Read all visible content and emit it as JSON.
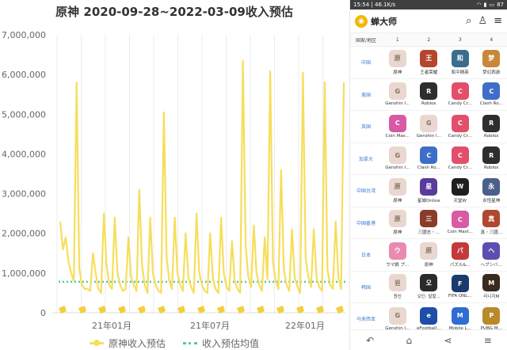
{
  "chart_data": {
    "type": "line",
    "title": "原神 2020-09-28~2022-03-09收入预估",
    "ylim": [
      0,
      7000000
    ],
    "yticks": [
      "0",
      "1,000,000",
      "2,000,000",
      "3,000,000",
      "4,000,000",
      "5,000,000",
      "6,000,000",
      "7,000,000"
    ],
    "xtick_labels": [
      "21年01月",
      "21年07月",
      "22年01月"
    ],
    "grid": "vertical",
    "legend_position": "bottom",
    "series": [
      {
        "name": "原神收入预估",
        "color": "#f7de5b",
        "values": [
          2300000,
          1600000,
          1900000,
          1300000,
          1000000,
          800000,
          5800000,
          1100000,
          700000,
          600000,
          600000,
          550000,
          1500000,
          1000000,
          600000,
          500000,
          2500000,
          1200000,
          700000,
          600000,
          2400000,
          1000000,
          700000,
          550000,
          600000,
          1900000,
          900000,
          700000,
          550000,
          3100000,
          1200000,
          700000,
          500000,
          2400000,
          1000000,
          700000,
          550000,
          500000,
          5050000,
          1400000,
          800000,
          600000,
          2400000,
          1000000,
          700000,
          550000,
          2000000,
          900000,
          650000,
          500000,
          2500000,
          1000000,
          700000,
          550000,
          500000,
          2000000,
          850000,
          600000,
          500000,
          2400000,
          1000000,
          650000,
          550000,
          1800000,
          800000,
          600000,
          500000,
          6350000,
          1700000,
          900000,
          650000,
          2200000,
          1000000,
          700000,
          550000,
          1900000,
          850000,
          6080000,
          1300000,
          800000,
          600000,
          3600000,
          1100000,
          700000,
          550000,
          2100000,
          900000,
          650000,
          500000,
          6050000,
          1400000,
          900000,
          650000,
          2100000,
          900000,
          650000,
          550000,
          5800000,
          1100000,
          700000,
          600000,
          2300000,
          900000,
          600000,
          5800000
        ],
        "stride_days": 5
      },
      {
        "name": "收入预估均值",
        "color": "#57c6a8",
        "constant": 780000
      }
    ]
  },
  "phone": {
    "status_time": "15:54",
    "status_net": "46.1K/s",
    "battery": "87",
    "app_name": "蝉大师",
    "header_icons": [
      "search-icon",
      "user-icon",
      "menu-icon"
    ],
    "column_header": [
      "国家/地区",
      "1",
      "2",
      "3",
      "4"
    ],
    "rows": [
      {
        "region": "中国",
        "apps": [
          {
            "name": "原神",
            "color": "#e8d8d0",
            "glyph": "原"
          },
          {
            "name": "王者荣耀",
            "color": "#b5462e",
            "glyph": "王"
          },
          {
            "name": "和平精英",
            "color": "#3b6c8f",
            "glyph": "和"
          },
          {
            "name": "梦幻西游",
            "color": "#c9873a",
            "glyph": "梦"
          }
        ]
      },
      {
        "region": "美国",
        "apps": [
          {
            "name": "Genshin I...",
            "color": "#e8d8d0",
            "glyph": "G"
          },
          {
            "name": "Roblox",
            "color": "#2e2e2e",
            "glyph": "R"
          },
          {
            "name": "Candy Cr...",
            "color": "#e34f6b",
            "glyph": "C"
          },
          {
            "name": "Clash Ro...",
            "color": "#3e6ec9",
            "glyph": "C"
          }
        ]
      },
      {
        "region": "英国",
        "apps": [
          {
            "name": "Coin Mas...",
            "color": "#d85aa5",
            "glyph": "C"
          },
          {
            "name": "Genshin I...",
            "color": "#e8d8d0",
            "glyph": "G"
          },
          {
            "name": "Candy Cr...",
            "color": "#e34f6b",
            "glyph": "C"
          },
          {
            "name": "Roblox",
            "color": "#2e2e2e",
            "glyph": "R"
          }
        ]
      },
      {
        "region": "加拿大",
        "apps": [
          {
            "name": "Genshin I...",
            "color": "#e8d8d0",
            "glyph": "G"
          },
          {
            "name": "Clash Ro...",
            "color": "#3e6ec9",
            "glyph": "C"
          },
          {
            "name": "Candy Cr...",
            "color": "#e34f6b",
            "glyph": "C"
          },
          {
            "name": "Roblox",
            "color": "#2e2e2e",
            "glyph": "R"
          }
        ]
      },
      {
        "region": "中国台湾",
        "apps": [
          {
            "name": "原神",
            "color": "#e8d8d0",
            "glyph": "原"
          },
          {
            "name": "星城Online",
            "color": "#5b3a9e",
            "glyph": "星"
          },
          {
            "name": "天堂W",
            "color": "#1f1f1f",
            "glyph": "W"
          },
          {
            "name": "永恆星神",
            "color": "#4a5f8a",
            "glyph": "永"
          }
        ]
      },
      {
        "region": "中国香港",
        "apps": [
          {
            "name": "原神",
            "color": "#e8d8d0",
            "glyph": "原"
          },
          {
            "name": "三國志・...",
            "color": "#8a3b2a",
            "glyph": "三"
          },
          {
            "name": "Coin Mast...",
            "color": "#d85aa5",
            "glyph": "C"
          },
          {
            "name": "真・三國...",
            "color": "#b0472e",
            "glyph": "真"
          }
        ]
      },
      {
        "region": "日本",
        "apps": [
          {
            "name": "ウマ娘 プ...",
            "color": "#e98bb0",
            "glyph": "ウ"
          },
          {
            "name": "原神",
            "color": "#e8d8d0",
            "glyph": "原"
          },
          {
            "name": "パズル&...",
            "color": "#c23a3a",
            "glyph": "パ"
          },
          {
            "name": "ヘブンバ...",
            "color": "#5a4fb0",
            "glyph": "ヘ"
          }
        ]
      },
      {
        "region": "韩国",
        "apps": [
          {
            "name": "원신",
            "color": "#e8d8d0",
            "glyph": "원"
          },
          {
            "name": "오딘: 발할...",
            "color": "#2a2a2a",
            "glyph": "오"
          },
          {
            "name": "FIFA ONL...",
            "color": "#1c3a6e",
            "glyph": "F"
          },
          {
            "name": "리니지M",
            "color": "#3a2a1c",
            "glyph": "M"
          }
        ]
      },
      {
        "region": "马来西亚",
        "apps": [
          {
            "name": "Genshin I...",
            "color": "#e8d8d0",
            "glyph": "G"
          },
          {
            "name": "eFootball...",
            "color": "#1e4ea8",
            "glyph": "e"
          },
          {
            "name": "Mobile L...",
            "color": "#2f6dd0",
            "glyph": "M"
          },
          {
            "name": "PUBG M...",
            "color": "#b88a2c",
            "glyph": "P"
          }
        ]
      }
    ],
    "nav_icons": [
      "back-icon",
      "home-icon",
      "share-icon",
      "more-icon"
    ]
  }
}
